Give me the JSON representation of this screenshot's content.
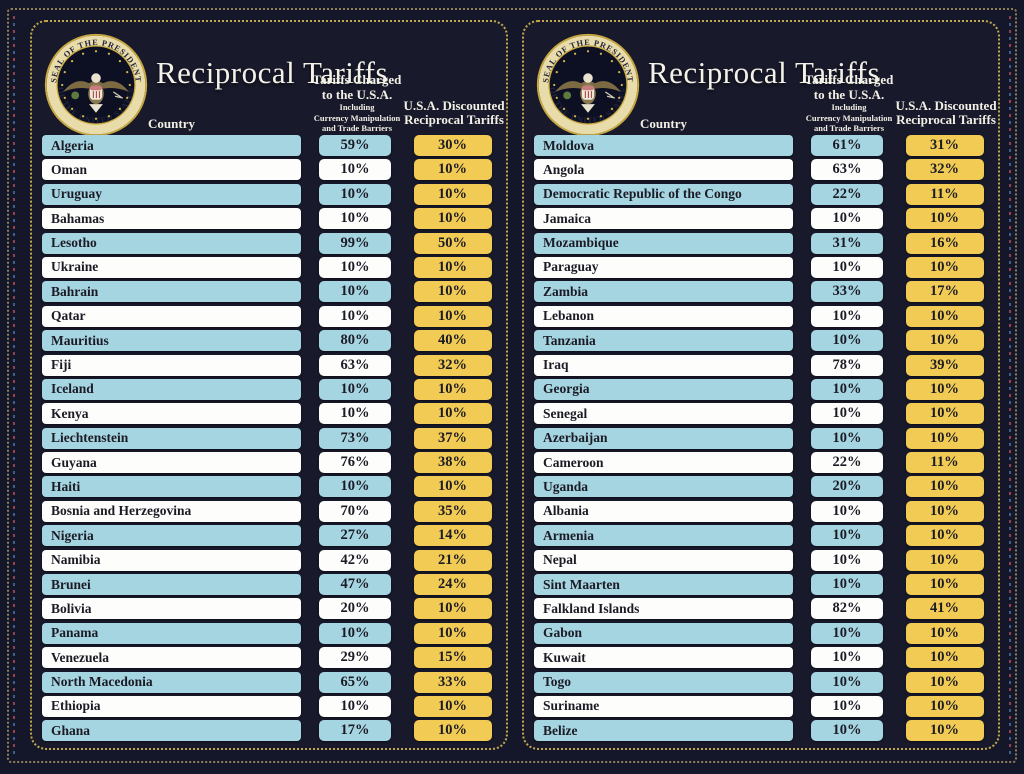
{
  "colors": {
    "background": "#14162a",
    "panel_background": "#181a2c",
    "panel_border_dots": "#c3a94c",
    "row_blue": "#a6d5e2",
    "row_white": "#fdfdfc",
    "discounted_gold": "#f1cb54",
    "header_text": "#f2efe4",
    "cell_text": "#1b1b25"
  },
  "seal": {
    "top_text": "SEAL OF THE PRESIDENT",
    "bottom_text": "OF THE UNITED STATES"
  },
  "panels": [
    {
      "title": "Reciprocal Tariffs",
      "column_headers": {
        "country": "Country",
        "charged_line1": "Tariffs Charged",
        "charged_line2": "to the U.S.A.",
        "charged_note1": "Including",
        "charged_note2": "Currency Manipulation",
        "charged_note3": "and Trade Barriers",
        "discounted_line1": "U.S.A. Discounted",
        "discounted_line2": "Reciprocal Tariffs"
      }
    },
    {
      "title": "Reciprocal Tariffs",
      "column_headers": {
        "country": "Country",
        "charged_line1": "Tariffs Charged",
        "charged_line2": "to the U.S.A.",
        "charged_note1": "Including",
        "charged_note2": "Currency Manipulation",
        "charged_note3": "and Trade Barriers",
        "discounted_line1": "U.S.A. Discounted",
        "discounted_line2": "Reciprocal Tariffs"
      }
    }
  ],
  "chart_data": [
    {
      "type": "table",
      "title": "Reciprocal Tariffs",
      "columns": [
        "Country",
        "Tariffs Charged to the U.S.A. Including Currency Manipulation and Trade Barriers",
        "U.S.A. Discounted Reciprocal Tariffs"
      ],
      "rows": [
        [
          "Algeria",
          "59%",
          "30%"
        ],
        [
          "Oman",
          "10%",
          "10%"
        ],
        [
          "Uruguay",
          "10%",
          "10%"
        ],
        [
          "Bahamas",
          "10%",
          "10%"
        ],
        [
          "Lesotho",
          "99%",
          "50%"
        ],
        [
          "Ukraine",
          "10%",
          "10%"
        ],
        [
          "Bahrain",
          "10%",
          "10%"
        ],
        [
          "Qatar",
          "10%",
          "10%"
        ],
        [
          "Mauritius",
          "80%",
          "40%"
        ],
        [
          "Fiji",
          "63%",
          "32%"
        ],
        [
          "Iceland",
          "10%",
          "10%"
        ],
        [
          "Kenya",
          "10%",
          "10%"
        ],
        [
          "Liechtenstein",
          "73%",
          "37%"
        ],
        [
          "Guyana",
          "76%",
          "38%"
        ],
        [
          "Haiti",
          "10%",
          "10%"
        ],
        [
          "Bosnia and Herzegovina",
          "70%",
          "35%"
        ],
        [
          "Nigeria",
          "27%",
          "14%"
        ],
        [
          "Namibia",
          "42%",
          "21%"
        ],
        [
          "Brunei",
          "47%",
          "24%"
        ],
        [
          "Bolivia",
          "20%",
          "10%"
        ],
        [
          "Panama",
          "10%",
          "10%"
        ],
        [
          "Venezuela",
          "29%",
          "15%"
        ],
        [
          "North Macedonia",
          "65%",
          "33%"
        ],
        [
          "Ethiopia",
          "10%",
          "10%"
        ],
        [
          "Ghana",
          "17%",
          "10%"
        ]
      ]
    },
    {
      "type": "table",
      "title": "Reciprocal Tariffs",
      "columns": [
        "Country",
        "Tariffs Charged to the U.S.A. Including Currency Manipulation and Trade Barriers",
        "U.S.A. Discounted Reciprocal Tariffs"
      ],
      "rows": [
        [
          "Moldova",
          "61%",
          "31%"
        ],
        [
          "Angola",
          "63%",
          "32%"
        ],
        [
          "Democratic Republic of the Congo",
          "22%",
          "11%"
        ],
        [
          "Jamaica",
          "10%",
          "10%"
        ],
        [
          "Mozambique",
          "31%",
          "16%"
        ],
        [
          "Paraguay",
          "10%",
          "10%"
        ],
        [
          "Zambia",
          "33%",
          "17%"
        ],
        [
          "Lebanon",
          "10%",
          "10%"
        ],
        [
          "Tanzania",
          "10%",
          "10%"
        ],
        [
          "Iraq",
          "78%",
          "39%"
        ],
        [
          "Georgia",
          "10%",
          "10%"
        ],
        [
          "Senegal",
          "10%",
          "10%"
        ],
        [
          "Azerbaijan",
          "10%",
          "10%"
        ],
        [
          "Cameroon",
          "22%",
          "11%"
        ],
        [
          "Uganda",
          "20%",
          "10%"
        ],
        [
          "Albania",
          "10%",
          "10%"
        ],
        [
          "Armenia",
          "10%",
          "10%"
        ],
        [
          "Nepal",
          "10%",
          "10%"
        ],
        [
          "Sint Maarten",
          "10%",
          "10%"
        ],
        [
          "Falkland Islands",
          "82%",
          "41%"
        ],
        [
          "Gabon",
          "10%",
          "10%"
        ],
        [
          "Kuwait",
          "10%",
          "10%"
        ],
        [
          "Togo",
          "10%",
          "10%"
        ],
        [
          "Suriname",
          "10%",
          "10%"
        ],
        [
          "Belize",
          "10%",
          "10%"
        ]
      ]
    }
  ]
}
